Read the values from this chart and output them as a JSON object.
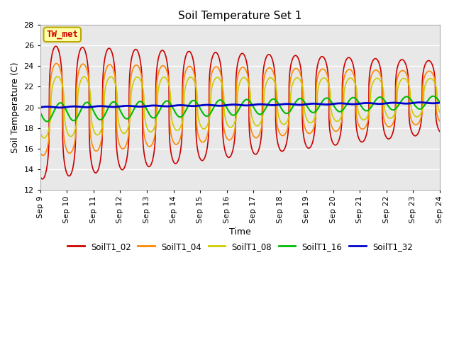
{
  "title": "Soil Temperature Set 1",
  "xlabel": "Time",
  "ylabel": "Soil Temperature (C)",
  "ylim": [
    12,
    28
  ],
  "yticks": [
    12,
    14,
    16,
    18,
    20,
    22,
    24,
    26,
    28
  ],
  "annotation": "TW_met",
  "background_color": "#e8e8e8",
  "series_names": [
    "SoilT1_02",
    "SoilT1_04",
    "SoilT1_08",
    "SoilT1_16",
    "SoilT1_32"
  ],
  "series_colors": [
    "#cc0000",
    "#ff8800",
    "#cccc00",
    "#00bb00",
    "#0000cc"
  ],
  "series_linewidths": [
    1.2,
    1.2,
    1.2,
    1.5,
    2.0
  ],
  "xtick_labels": [
    "Sep 9",
    "Sep 10",
    "Sep 11",
    "Sep 12",
    "Sep 13",
    "Sep 14",
    "Sep 15",
    "Sep 16",
    "Sep 17",
    "Sep 18",
    "Sep 19",
    "Sep 20",
    "Sep 21",
    "Sep 22",
    "Sep 23",
    "Sep 24"
  ],
  "n_days": 15,
  "points_per_day": 144,
  "font_size": 9
}
